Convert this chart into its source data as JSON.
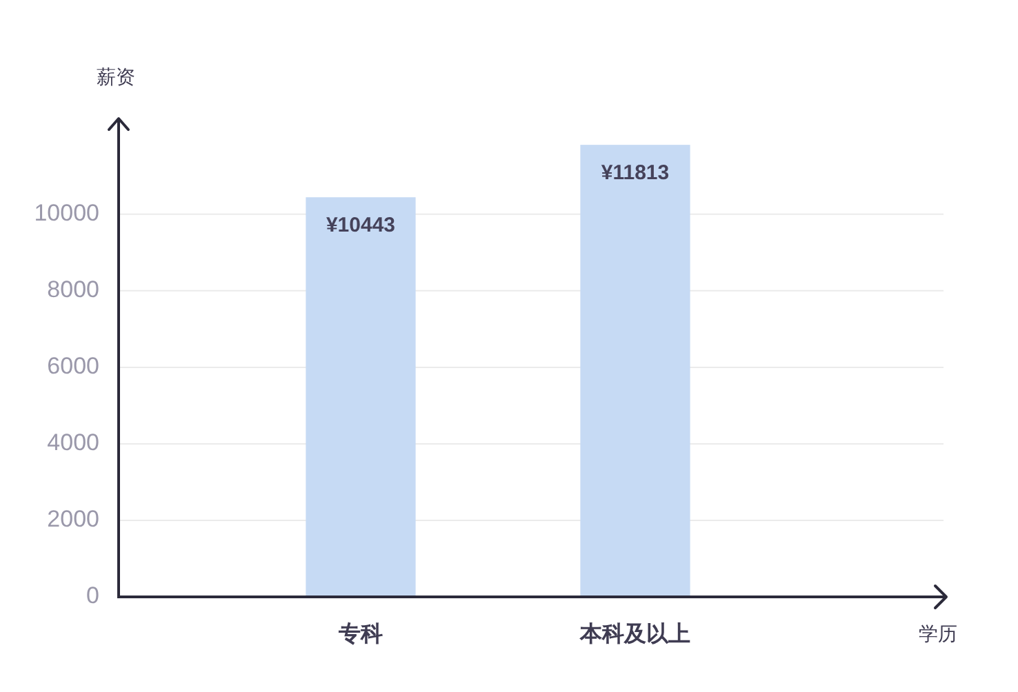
{
  "chart_data": {
    "type": "bar",
    "ylabel": "薪资",
    "xlabel": "学历",
    "categories": [
      "专科",
      "本科及以上"
    ],
    "values": [
      10443,
      11813
    ],
    "color": "#c6daf4",
    "value_labels": [
      "¥10443",
      "¥11813"
    ],
    "ylim": [
      0,
      12500
    ],
    "yticks": [
      0,
      2000,
      4000,
      6000,
      8000,
      10000
    ],
    "grid": "y"
  }
}
